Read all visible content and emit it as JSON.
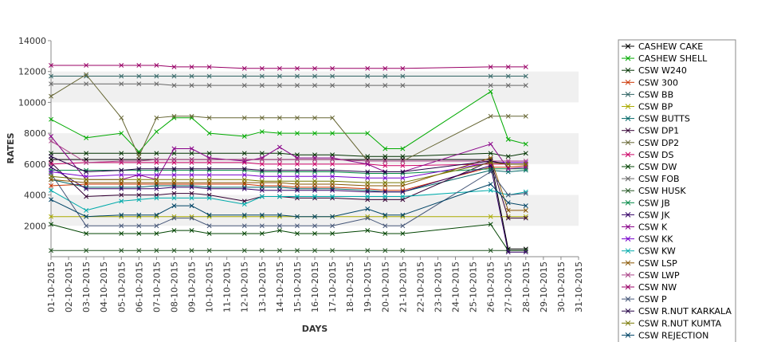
{
  "chart_data": {
    "type": "line",
    "title": "",
    "xlabel": "DAYS",
    "ylabel": "RATES",
    "ylim": [
      0,
      14000
    ],
    "y_ticks": [
      2000,
      4000,
      6000,
      8000,
      10000,
      12000,
      14000
    ],
    "grid": "alternating horizontal bands",
    "legend_position": "right",
    "marker": "x",
    "x": [
      "01-10-2015",
      "02-10-2015",
      "03-10-2015",
      "04-10-2015",
      "05-10-2015",
      "06-10-2015",
      "07-10-2015",
      "08-10-2015",
      "09-10-2015",
      "10-10-2015",
      "11-10-2015",
      "12-10-2015",
      "13-10-2015",
      "14-10-2015",
      "15-10-2015",
      "16-10-2015",
      "17-10-2015",
      "18-10-2015",
      "19-10-2015",
      "20-10-2015",
      "21-10-2015",
      "22-10-2015",
      "23-10-2015",
      "24-10-2015",
      "25-10-2015",
      "26-10-2015",
      "27-10-2015",
      "28-10-2015",
      "29-10-2015",
      "30-10-2015",
      "31-10-2015"
    ],
    "series": [
      {
        "name": "CASHEW CAKE",
        "color": "#000000",
        "values": [
          6300,
          null,
          6300,
          null,
          6300,
          6300,
          6300,
          6300,
          6300,
          6300,
          null,
          6300,
          6300,
          6300,
          6300,
          6300,
          6300,
          null,
          6300,
          6300,
          6300,
          null,
          null,
          null,
          null,
          6300,
          500,
          500,
          null,
          null,
          null
        ]
      },
      {
        "name": "CASHEW SHELL",
        "color": "#00aa00",
        "values": [
          8900,
          null,
          7700,
          null,
          8000,
          6800,
          8100,
          9000,
          9000,
          8000,
          null,
          7800,
          8100,
          8000,
          8000,
          8000,
          8000,
          null,
          8000,
          7000,
          7000,
          null,
          null,
          null,
          null,
          10700,
          7600,
          7300,
          null,
          null,
          null
        ]
      },
      {
        "name": "CSW  W240",
        "color": "#003300",
        "values": [
          6700,
          null,
          6700,
          null,
          6700,
          6700,
          6700,
          6700,
          6700,
          6700,
          null,
          6700,
          6700,
          6700,
          6600,
          6600,
          6600,
          null,
          6500,
          6500,
          6500,
          null,
          null,
          null,
          null,
          6700,
          6500,
          6700,
          null,
          null,
          null
        ]
      },
      {
        "name": "CSW 300",
        "color": "#cc3300",
        "values": [
          4600,
          null,
          4700,
          null,
          4700,
          4700,
          4700,
          4700,
          4700,
          4700,
          null,
          4700,
          4600,
          4600,
          4500,
          4500,
          4500,
          null,
          4400,
          4300,
          4300,
          null,
          null,
          null,
          null,
          5800,
          5800,
          5900,
          null,
          null,
          null
        ]
      },
      {
        "name": "CSW BB",
        "color": "#336666",
        "values": [
          11700,
          null,
          11700,
          null,
          11700,
          11700,
          11700,
          11700,
          11700,
          11700,
          null,
          11700,
          11700,
          11700,
          11700,
          11700,
          11700,
          null,
          11700,
          11700,
          11700,
          null,
          null,
          null,
          null,
          11700,
          11700,
          11700,
          null,
          null,
          null
        ]
      },
      {
        "name": "CSW BP",
        "color": "#aaaa00",
        "values": [
          2600,
          null,
          2600,
          null,
          2600,
          2600,
          2600,
          2600,
          2600,
          2600,
          null,
          2600,
          2600,
          2600,
          2600,
          2600,
          2600,
          null,
          2600,
          2600,
          2600,
          null,
          null,
          null,
          null,
          2600,
          2600,
          2600,
          null,
          null,
          null
        ]
      },
      {
        "name": "CSW BUTTS",
        "color": "#006666",
        "values": [
          5000,
          null,
          4500,
          null,
          4500,
          4500,
          4600,
          4600,
          4600,
          4500,
          null,
          4500,
          4500,
          4500,
          4400,
          4400,
          4400,
          null,
          4300,
          4200,
          4200,
          null,
          null,
          null,
          null,
          5600,
          5500,
          5600,
          null,
          null,
          null
        ]
      },
      {
        "name": "CSW DP1",
        "color": "#330033",
        "values": [
          6100,
          null,
          3900,
          null,
          4000,
          4000,
          4000,
          4100,
          4100,
          4000,
          null,
          3600,
          3900,
          3900,
          3800,
          3800,
          3800,
          null,
          3700,
          3700,
          3700,
          null,
          null,
          null,
          null,
          6200,
          2500,
          2500,
          null,
          null,
          null
        ]
      },
      {
        "name": "CSW DP2",
        "color": "#666633",
        "values": [
          10400,
          null,
          11800,
          null,
          9000,
          6500,
          9000,
          9100,
          9100,
          9000,
          null,
          9000,
          9000,
          9000,
          9000,
          9000,
          9000,
          null,
          6200,
          6200,
          6200,
          null,
          null,
          null,
          null,
          9100,
          9100,
          9100,
          null,
          null,
          null
        ]
      },
      {
        "name": "CSW DS",
        "color": "#cc0066",
        "values": [
          6000,
          null,
          6100,
          null,
          6100,
          6100,
          6100,
          6100,
          6100,
          6100,
          null,
          6100,
          6000,
          6000,
          6000,
          6000,
          6000,
          null,
          6000,
          5900,
          5900,
          null,
          null,
          null,
          null,
          6000,
          6000,
          6000,
          null,
          null,
          null
        ]
      },
      {
        "name": "CSW DW",
        "color": "#004400",
        "values": [
          2100,
          null,
          1500,
          null,
          1500,
          1500,
          1500,
          1700,
          1700,
          1500,
          null,
          1500,
          1500,
          1700,
          1500,
          1500,
          1500,
          null,
          1700,
          1500,
          1500,
          null,
          null,
          null,
          null,
          2100,
          400,
          400,
          null,
          null,
          null
        ]
      },
      {
        "name": "CSW FOB",
        "color": "#666666",
        "values": [
          11200,
          null,
          11200,
          null,
          11200,
          11200,
          11200,
          11100,
          11100,
          11100,
          null,
          11100,
          11100,
          11100,
          11100,
          11100,
          11100,
          null,
          11100,
          11100,
          11100,
          null,
          null,
          null,
          null,
          11100,
          11100,
          11100,
          null,
          null,
          null
        ]
      },
      {
        "name": "CSW HUSK",
        "color": "#225522",
        "values": [
          400,
          null,
          400,
          null,
          400,
          400,
          400,
          400,
          400,
          400,
          null,
          400,
          400,
          400,
          400,
          400,
          400,
          null,
          400,
          400,
          400,
          null,
          null,
          null,
          null,
          400,
          400,
          400,
          null,
          null,
          null
        ]
      },
      {
        "name": "CSW JB",
        "color": "#008844",
        "values": [
          5600,
          null,
          5600,
          null,
          5600,
          5600,
          5600,
          5600,
          5600,
          5600,
          null,
          5600,
          5500,
          5500,
          5500,
          5500,
          5500,
          null,
          5400,
          5400,
          5400,
          null,
          null,
          null,
          null,
          5700,
          5700,
          5700,
          null,
          null,
          null
        ]
      },
      {
        "name": "CSW JK",
        "color": "#330066",
        "values": [
          5800,
          null,
          4400,
          null,
          4400,
          4400,
          4400,
          4500,
          4500,
          4400,
          null,
          4400,
          4300,
          4300,
          4300,
          4300,
          4300,
          null,
          4200,
          4200,
          4200,
          null,
          null,
          null,
          null,
          5900,
          300,
          300,
          null,
          null,
          null
        ]
      },
      {
        "name": "CSW K",
        "color": "#880088",
        "values": [
          7800,
          null,
          5000,
          null,
          5000,
          5300,
          5000,
          7000,
          7000,
          6400,
          null,
          6200,
          6400,
          7100,
          6400,
          6400,
          6400,
          null,
          6000,
          5500,
          5500,
          null,
          null,
          null,
          null,
          7300,
          5700,
          5800,
          null,
          null,
          null
        ]
      },
      {
        "name": "CSW KK",
        "color": "#7700cc",
        "values": [
          5500,
          null,
          5200,
          null,
          5300,
          5300,
          5300,
          5300,
          5300,
          5300,
          null,
          5300,
          5200,
          5200,
          5200,
          5200,
          5200,
          null,
          5100,
          5100,
          5100,
          null,
          null,
          null,
          null,
          6100,
          6100,
          6100,
          null,
          null,
          null
        ]
      },
      {
        "name": "CSW KW",
        "color": "#00aaaa",
        "values": [
          4300,
          null,
          3000,
          null,
          3600,
          3700,
          3800,
          3800,
          3800,
          3800,
          null,
          3400,
          3900,
          3900,
          3900,
          3900,
          3900,
          null,
          3900,
          3900,
          3900,
          null,
          null,
          null,
          null,
          4300,
          4000,
          4200,
          null,
          null,
          null
        ]
      },
      {
        "name": "CSW LSP",
        "color": "#885500",
        "values": [
          5000,
          null,
          4800,
          null,
          4800,
          4800,
          4800,
          4800,
          4800,
          4800,
          null,
          4800,
          4800,
          4800,
          4700,
          4700,
          4700,
          null,
          4600,
          4600,
          4600,
          null,
          null,
          null,
          null,
          6400,
          3000,
          3000,
          null,
          null,
          null
        ]
      },
      {
        "name": "CSW LWP",
        "color": "#aa4488",
        "values": [
          7500,
          null,
          6100,
          null,
          6200,
          6200,
          6300,
          6300,
          6300,
          6300,
          null,
          6300,
          6300,
          6300,
          6300,
          6300,
          6300,
          null,
          6200,
          6200,
          6200,
          null,
          null,
          null,
          null,
          6200,
          6200,
          6200,
          null,
          null,
          null
        ]
      },
      {
        "name": "CSW NW",
        "color": "#990066",
        "values": [
          12400,
          null,
          12400,
          null,
          12400,
          12400,
          12400,
          12300,
          12300,
          12300,
          null,
          12200,
          12200,
          12200,
          12200,
          12200,
          12200,
          null,
          12200,
          12200,
          12200,
          null,
          null,
          null,
          null,
          12300,
          12300,
          12300,
          null,
          null,
          null
        ]
      },
      {
        "name": "CSW P",
        "color": "#445577",
        "values": [
          5400,
          null,
          2000,
          null,
          2000,
          2000,
          2000,
          2500,
          2500,
          2000,
          null,
          2000,
          2000,
          2000,
          2000,
          2000,
          2000,
          null,
          2500,
          2000,
          2000,
          null,
          null,
          null,
          null,
          5500,
          4000,
          4100,
          null,
          null,
          null
        ]
      },
      {
        "name": "CSW R.NUT KARKALA",
        "color": "#220044",
        "values": [
          6500,
          null,
          5500,
          null,
          5600,
          5700,
          5700,
          5700,
          5700,
          5700,
          null,
          5700,
          5600,
          5600,
          5600,
          5600,
          5600,
          null,
          5500,
          5500,
          5500,
          null,
          null,
          null,
          null,
          6200,
          6000,
          6000,
          null,
          null,
          null
        ]
      },
      {
        "name": "CSW R.NUT KUMTA",
        "color": "#777700",
        "values": [
          5200,
          null,
          5000,
          null,
          5000,
          5000,
          5000,
          5000,
          5000,
          5000,
          null,
          5000,
          4900,
          4900,
          4900,
          4900,
          4900,
          null,
          4800,
          4800,
          4800,
          null,
          null,
          null,
          null,
          6100,
          6000,
          6000,
          null,
          null,
          null
        ]
      },
      {
        "name": "CSW REJECTION",
        "color": "#004466",
        "values": [
          3700,
          null,
          2600,
          null,
          2700,
          2700,
          2700,
          3300,
          3300,
          2700,
          null,
          2700,
          2700,
          2700,
          2600,
          2600,
          2600,
          null,
          3100,
          2700,
          2700,
          null,
          null,
          null,
          null,
          4700,
          3500,
          3300,
          null,
          null,
          null
        ]
      }
    ]
  }
}
